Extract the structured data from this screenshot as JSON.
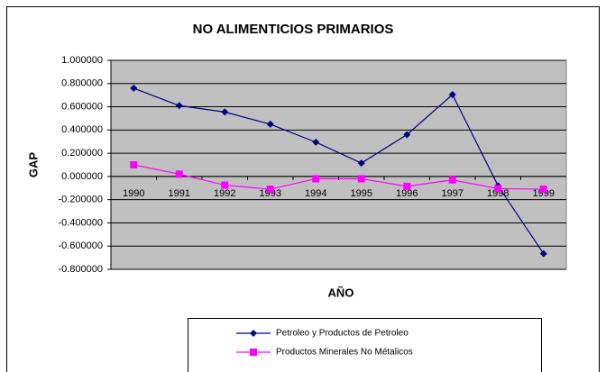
{
  "chart_data": {
    "type": "line",
    "title": "NO ALIMENTICIOS PRIMARIOS",
    "x_label": "AÑO",
    "y_label": "GAP",
    "categories": [
      "1990",
      "1991",
      "1992",
      "1993",
      "1994",
      "1995",
      "1996",
      "1997",
      "1998",
      "1999"
    ],
    "series": [
      {
        "name": "Petroleo y Productos de Petroleo",
        "color": "#000080",
        "marker": "diamond",
        "values": [
          0.76,
          0.61,
          0.555,
          0.45,
          0.295,
          0.115,
          0.36,
          0.705,
          -0.08,
          -0.665
        ]
      },
      {
        "name": "Productos Minerales No Métalicos",
        "color": "#ff00ff",
        "marker": "square",
        "values": [
          0.1,
          0.02,
          -0.075,
          -0.11,
          -0.02,
          -0.02,
          -0.085,
          -0.03,
          -0.105,
          -0.11
        ]
      }
    ],
    "ylim": [
      -0.8,
      1.0
    ],
    "yticks": [
      {
        "value": -0.8,
        "label": "-0.800000"
      },
      {
        "value": -0.6,
        "label": "-0.600000"
      },
      {
        "value": -0.4,
        "label": "-0.400000"
      },
      {
        "value": -0.2,
        "label": "-0.200000"
      },
      {
        "value": 0,
        "label": "0.000000"
      },
      {
        "value": 0.2,
        "label": "0.200000"
      },
      {
        "value": 0.4,
        "label": "0.400000"
      },
      {
        "value": 0.6,
        "label": "0.600000"
      },
      {
        "value": 0.8,
        "label": "0.800000"
      },
      {
        "value": 1.0,
        "label": "1.000000"
      }
    ],
    "grid": true
  }
}
